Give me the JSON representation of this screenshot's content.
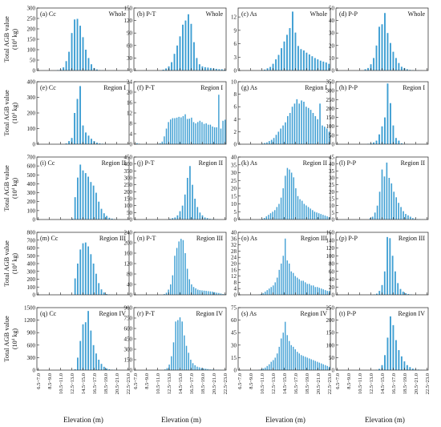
{
  "figure": {
    "ylabel": "Total AGB value",
    "xlabel": "Elevation (m)",
    "bar_color": "#3f9fd3"
  },
  "x_tick_labels": [
    "6.5~7.0",
    "8.5~9.0",
    "10.5~11.0",
    "12.5~13.0",
    "14.5~15.0",
    "16.5~17.0",
    "18.5~19.0",
    "20.5~21.0",
    "22.5~23.0"
  ],
  "chart_data": [
    {
      "type": "bar",
      "panel": "(a) Cc",
      "region": "Whole",
      "ylim": [
        0,
        300
      ],
      "yticks": [
        0,
        50,
        100,
        150,
        200,
        250,
        300
      ],
      "unit_exp": "4",
      "values": [
        0,
        0,
        0,
        0,
        0,
        0,
        0,
        2,
        5,
        15,
        45,
        90,
        180,
        245,
        248,
        215,
        160,
        100,
        60,
        30,
        12,
        5,
        2,
        1,
        0,
        0,
        0,
        0,
        0,
        0,
        0,
        0,
        0
      ]
    },
    {
      "type": "bar",
      "panel": "(b) P-T",
      "region": "Whole",
      "ylim": [
        0,
        150
      ],
      "yticks": [
        0,
        30,
        60,
        90,
        120,
        150
      ],
      "unit_exp": "4",
      "values": [
        0,
        0,
        0,
        0,
        0,
        0,
        0,
        0,
        0,
        0,
        2,
        5,
        10,
        20,
        40,
        60,
        82,
        110,
        120,
        135,
        112,
        68,
        30,
        15,
        10,
        8,
        7,
        6,
        5,
        4,
        3,
        3,
        2
      ]
    },
    {
      "type": "bar",
      "panel": "(c) As",
      "region": "Whole",
      "ylim": [
        0,
        14
      ],
      "yticks": [
        0,
        3,
        6,
        9,
        12
      ],
      "unit_exp": "4",
      "values": [
        0,
        0,
        0,
        0,
        0,
        0,
        0,
        0,
        0.1,
        0.2,
        0.5,
        0.8,
        1.5,
        2.5,
        3.5,
        5,
        6.5,
        8,
        9.5,
        13.2,
        8.5,
        5.5,
        4.8,
        4.5,
        4,
        3.6,
        3.2,
        2.8,
        2.5,
        2.2,
        2,
        1.8,
        1.5
      ]
    },
    {
      "type": "bar",
      "panel": "(d) P-P",
      "region": "Whole",
      "ylim": [
        0,
        50
      ],
      "yticks": [
        0,
        10,
        20,
        30,
        40,
        50
      ],
      "unit_exp": "4",
      "values": [
        0,
        0,
        0,
        0,
        0,
        0,
        0,
        0,
        0,
        0,
        1,
        2,
        5,
        10,
        20,
        35,
        37,
        46,
        30,
        22,
        15,
        10,
        6,
        3,
        2,
        1,
        0.5,
        0.3,
        0.2,
        0.1,
        0.1,
        0,
        0
      ]
    },
    {
      "type": "bar",
      "panel": "(e) Cc",
      "region": "Region I",
      "ylim": [
        0,
        400
      ],
      "yticks": [
        0,
        100,
        200,
        300,
        400
      ],
      "unit_exp": "4",
      "values": [
        0,
        0,
        0,
        0,
        0,
        0,
        0,
        0,
        0,
        0,
        5,
        20,
        40,
        200,
        290,
        372,
        120,
        75,
        55,
        35,
        20,
        10,
        5,
        3,
        2,
        1,
        0,
        0,
        0,
        0,
        0,
        0,
        0
      ]
    },
    {
      "type": "bar",
      "panel": "(f) P-T",
      "region": "Region I",
      "ylim": [
        0,
        24
      ],
      "yticks": [
        0,
        4,
        8,
        12,
        16,
        20,
        24
      ],
      "unit_exp": "4",
      "values": [
        0,
        0.4,
        0.2,
        0,
        0,
        0,
        0,
        0,
        0,
        0,
        0,
        0.2,
        0.4,
        1,
        3,
        6,
        8.5,
        9.5,
        10,
        10,
        10.2,
        10.5,
        10.3,
        10.8,
        11.5,
        9.7,
        9.8,
        10.2,
        8.5,
        8,
        8.5,
        9,
        8.5,
        7.8,
        8,
        7.5,
        7.5,
        6.8,
        6.5,
        6.5,
        19,
        6,
        9,
        9.4
      ]
    },
    {
      "type": "bar",
      "panel": "(g) As",
      "region": "Region I",
      "ylim": [
        0,
        10
      ],
      "yticks": [
        0,
        2,
        4,
        6,
        8,
        10
      ],
      "unit_exp": "4",
      "values": [
        0,
        0,
        0,
        0,
        0,
        0,
        0,
        0,
        0,
        0,
        0.1,
        0.2,
        0.3,
        0.5,
        0.7,
        1,
        1.5,
        2,
        2.5,
        3,
        3.5,
        4.5,
        5,
        6,
        6.5,
        7.2,
        6.5,
        7,
        6.8,
        6,
        5.8,
        5.5,
        5,
        4.5,
        4,
        6.5,
        3,
        2.8,
        2.5,
        2
      ]
    },
    {
      "type": "bar",
      "panel": "(h) P-P",
      "region": "Region I",
      "ylim": [
        0,
        350
      ],
      "yticks": [
        0,
        50,
        100,
        150,
        200,
        250,
        300,
        350
      ],
      "unit_exp": "4",
      "values": [
        0,
        0,
        0,
        0,
        0,
        0,
        0,
        0,
        0,
        0,
        0,
        2,
        5,
        10,
        20,
        55,
        100,
        150,
        340,
        230,
        105,
        35,
        20,
        5,
        2,
        1,
        0,
        0,
        0,
        0,
        0,
        0,
        0
      ]
    },
    {
      "type": "bar",
      "panel": "(i) Cc",
      "region": "Region II",
      "ylim": [
        0,
        700
      ],
      "yticks": [
        0,
        100,
        200,
        300,
        400,
        500,
        600,
        700
      ],
      "unit_exp": "4",
      "values": [
        0,
        0,
        0,
        0,
        0,
        0,
        0,
        0,
        0,
        0,
        0,
        0,
        0,
        10,
        250,
        470,
        615,
        550,
        520,
        480,
        420,
        380,
        300,
        200,
        120,
        70,
        40,
        20,
        10,
        5,
        2,
        1,
        0,
        0,
        0
      ]
    },
    {
      "type": "bar",
      "panel": "(j) P-T",
      "region": "Region II",
      "ylim": [
        0,
        450
      ],
      "yticks": [
        0,
        50,
        100,
        150,
        200,
        250,
        300,
        350,
        400,
        450
      ],
      "unit_exp": "4",
      "values": [
        0,
        0,
        0,
        0,
        0,
        0,
        0,
        0,
        0,
        0,
        0,
        0,
        0,
        0,
        5,
        10,
        15,
        30,
        60,
        100,
        180,
        300,
        385,
        250,
        150,
        90,
        50,
        30,
        15,
        10,
        5,
        3,
        2,
        1,
        0,
        0,
        0
      ]
    },
    {
      "type": "bar",
      "panel": "(k) As",
      "region": "Region II",
      "ylim": [
        0,
        40
      ],
      "yticks": [
        0,
        5,
        10,
        15,
        20,
        25,
        30,
        35,
        40
      ],
      "unit_exp": "4",
      "values": [
        0,
        0,
        0,
        0,
        0,
        0,
        0,
        0,
        0,
        0,
        0.2,
        0.5,
        1,
        2,
        3,
        4,
        5,
        6,
        8,
        10,
        14,
        20,
        28,
        33,
        32,
        30,
        27,
        20,
        15,
        13,
        12,
        10,
        9,
        8,
        7,
        6,
        5,
        4.5,
        4,
        3.5,
        3,
        2.5,
        2,
        1.5
      ]
    },
    {
      "type": "bar",
      "panel": "(l) P-P",
      "region": "Region II",
      "ylim": [
        0,
        45
      ],
      "yticks": [
        0,
        5,
        10,
        15,
        20,
        25,
        30,
        35,
        40,
        45
      ],
      "unit_exp": "4",
      "values": [
        0,
        0,
        0,
        0,
        0,
        0,
        0,
        0,
        0,
        0,
        0,
        0,
        0,
        0,
        1,
        2,
        5,
        10,
        20,
        36,
        31,
        41,
        30,
        26,
        20,
        16,
        12,
        9,
        6,
        4,
        3,
        2,
        1,
        0.5,
        0.3,
        0.2,
        0.1,
        0.1,
        0
      ]
    },
    {
      "type": "bar",
      "panel": "(m) Cc",
      "region": "Region III",
      "ylim": [
        0,
        800
      ],
      "yticks": [
        0,
        100,
        200,
        300,
        400,
        500,
        600,
        700,
        800
      ],
      "unit_exp": "4",
      "values": [
        0,
        0,
        0,
        0,
        0,
        0,
        0,
        0,
        0,
        0,
        0,
        0,
        0,
        0,
        210,
        400,
        580,
        660,
        670,
        620,
        520,
        400,
        270,
        150,
        70,
        30,
        10,
        5,
        2,
        1,
        0,
        0,
        0,
        0,
        0
      ]
    },
    {
      "type": "bar",
      "panel": "(n) P-T",
      "region": "Region III",
      "ylim": [
        0,
        240
      ],
      "yticks": [
        0,
        40,
        80,
        120,
        160,
        200,
        240
      ],
      "unit_exp": "4",
      "values": [
        0,
        0,
        0,
        0,
        0,
        0,
        0,
        0,
        0,
        0,
        0,
        0,
        0,
        0,
        3,
        8,
        20,
        40,
        75,
        150,
        180,
        205,
        215,
        210,
        160,
        100,
        60,
        40,
        30,
        25,
        20,
        18,
        17,
        16,
        15,
        14,
        13,
        12,
        10,
        8,
        7,
        5,
        3,
        2
      ]
    },
    {
      "type": "bar",
      "panel": "(o) As",
      "region": "Region III",
      "ylim": [
        0,
        40
      ],
      "yticks": [
        0,
        4,
        8,
        12,
        16,
        20,
        24,
        28,
        32,
        36,
        40
      ],
      "unit_exp": "4",
      "values": [
        0,
        0,
        0,
        0,
        0,
        0,
        0,
        0,
        0,
        0,
        0.2,
        0.5,
        1,
        2,
        3,
        4,
        5,
        6,
        8,
        11,
        16,
        20,
        25,
        36,
        22,
        20,
        15,
        14,
        12,
        11,
        10,
        9,
        9,
        8,
        7,
        7,
        6,
        6,
        5,
        5,
        4.5,
        4,
        3.5,
        3,
        2.5,
        2.5
      ]
    },
    {
      "type": "bar",
      "panel": "(p) P-P",
      "region": "Region III",
      "ylim": [
        0,
        160
      ],
      "yticks": [
        0,
        20,
        40,
        60,
        80,
        100,
        120,
        140,
        160
      ],
      "unit_exp": "4",
      "values": [
        0,
        0,
        0,
        0,
        0,
        0,
        0,
        0,
        0,
        0,
        0,
        0,
        0,
        0,
        1,
        3,
        10,
        25,
        60,
        148,
        145,
        100,
        60,
        30,
        15,
        8,
        4,
        2,
        1,
        0,
        0,
        0,
        0,
        0,
        0
      ]
    },
    {
      "type": "bar",
      "panel": "(q) Cc",
      "region": "Region IV",
      "ylim": [
        0,
        1500
      ],
      "yticks": [
        0,
        300,
        600,
        900,
        1200,
        1500
      ],
      "unit_exp": "4",
      "values": [
        0,
        0,
        0,
        0,
        0,
        0,
        0,
        0,
        0,
        0,
        0,
        0,
        0,
        0,
        20,
        300,
        700,
        1100,
        1150,
        1420,
        950,
        600,
        400,
        250,
        150,
        80,
        40,
        20,
        10,
        5,
        2,
        1,
        0,
        0,
        0
      ]
    },
    {
      "type": "bar",
      "panel": "(r) P-T",
      "region": "Region IV",
      "ylim": [
        0,
        900
      ],
      "yticks": [
        0,
        150,
        300,
        450,
        600,
        750,
        900
      ],
      "unit_exp": "4",
      "values": [
        0,
        0,
        0,
        0,
        0,
        0,
        0,
        0,
        0,
        0,
        0,
        0,
        0,
        0,
        10,
        30,
        80,
        200,
        400,
        700,
        720,
        760,
        700,
        500,
        350,
        250,
        150,
        100,
        70,
        50,
        40,
        30,
        25,
        20,
        15,
        10,
        8,
        6,
        5,
        4,
        3,
        2,
        1
      ]
    },
    {
      "type": "bar",
      "panel": "(s) As",
      "region": "Region IV",
      "ylim": [
        0,
        75
      ],
      "yticks": [
        0,
        15,
        30,
        45,
        60,
        75
      ],
      "unit_exp": "4",
      "values": [
        0,
        0,
        0,
        0,
        0,
        0,
        0,
        0,
        0,
        0,
        0.5,
        1,
        2,
        3,
        5,
        7,
        10,
        12,
        15,
        20,
        28,
        38,
        45,
        58,
        42,
        35,
        30,
        28,
        25,
        22,
        20,
        18,
        17,
        16,
        15,
        14,
        13,
        12,
        11,
        10,
        9,
        8,
        7,
        6,
        5,
        4
      ]
    },
    {
      "type": "bar",
      "panel": "(t) P-P",
      "region": "Region IV",
      "ylim": [
        0,
        250
      ],
      "yticks": [
        0,
        50,
        100,
        150,
        200,
        250
      ],
      "unit_exp": "4",
      "values": [
        0,
        0,
        0,
        0,
        0,
        0,
        0,
        0,
        0,
        0,
        0,
        0,
        0,
        0,
        1,
        5,
        20,
        60,
        130,
        215,
        180,
        120,
        80,
        55,
        35,
        20,
        12,
        6,
        3,
        2,
        1,
        0.5,
        0
      ]
    }
  ]
}
